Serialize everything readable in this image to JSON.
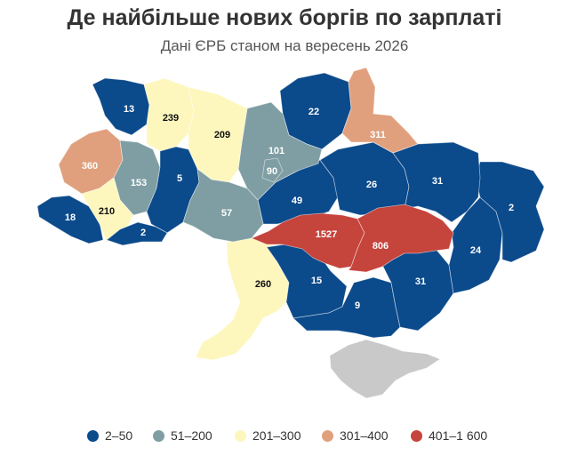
{
  "title": "Де найбільше нових боргів по зарплаті",
  "subtitle": "Дані ЄРБ станом на вересень 2026",
  "colors": {
    "c1": "#0b4a8b",
    "c2": "#7f9ea3",
    "c3": "#fdf7bd",
    "c4": "#e1a07d",
    "c5": "#c5443c",
    "crimea": "#c9c9c9"
  },
  "legend": [
    {
      "label": "2–50",
      "color": "#0b4a8b"
    },
    {
      "label": "51–200",
      "color": "#7f9ea3"
    },
    {
      "label": "201–300",
      "color": "#fdf7bd"
    },
    {
      "label": "301–400",
      "color": "#e1a07d"
    },
    {
      "label": "401–1 600",
      "color": "#c5443c"
    }
  ],
  "regions": [
    {
      "id": "volyn",
      "value": "13",
      "cls": "c1"
    },
    {
      "id": "rivne",
      "value": "239",
      "cls": "c3"
    },
    {
      "id": "zhytomyr",
      "value": "209",
      "cls": "c3"
    },
    {
      "id": "kyiv",
      "value": "101",
      "cls": "c2"
    },
    {
      "id": "kyiv-city",
      "value": "90",
      "cls": "c2"
    },
    {
      "id": "chernihiv",
      "value": "22",
      "cls": "c1"
    },
    {
      "id": "sumy",
      "value": "311",
      "cls": "c4"
    },
    {
      "id": "lviv",
      "value": "360",
      "cls": "c4"
    },
    {
      "id": "ternopil",
      "value": "153",
      "cls": "c2"
    },
    {
      "id": "khmelnytskyi",
      "value": "5",
      "cls": "c1"
    },
    {
      "id": "vinnytsia",
      "value": "57",
      "cls": "c2"
    },
    {
      "id": "cherkasy",
      "value": "49",
      "cls": "c1"
    },
    {
      "id": "poltava",
      "value": "26",
      "cls": "c1"
    },
    {
      "id": "kharkiv",
      "value": "31",
      "cls": "c1"
    },
    {
      "id": "luhansk",
      "value": "2",
      "cls": "c1"
    },
    {
      "id": "ivano-frankivsk",
      "value": "210",
      "cls": "c3"
    },
    {
      "id": "zakarpattia",
      "value": "18",
      "cls": "c1"
    },
    {
      "id": "chernivtsi",
      "value": "2",
      "cls": "c1"
    },
    {
      "id": "kirovohrad",
      "value": "1527",
      "cls": "c5"
    },
    {
      "id": "dnipropetrovsk",
      "value": "806",
      "cls": "c5"
    },
    {
      "id": "donetsk",
      "value": "24",
      "cls": "c1"
    },
    {
      "id": "odesa",
      "value": "260",
      "cls": "c3"
    },
    {
      "id": "mykolaiv",
      "value": "15",
      "cls": "c1"
    },
    {
      "id": "zaporizhzhia",
      "value": "31",
      "cls": "c1"
    },
    {
      "id": "kherson",
      "value": "9",
      "cls": "c1"
    }
  ]
}
